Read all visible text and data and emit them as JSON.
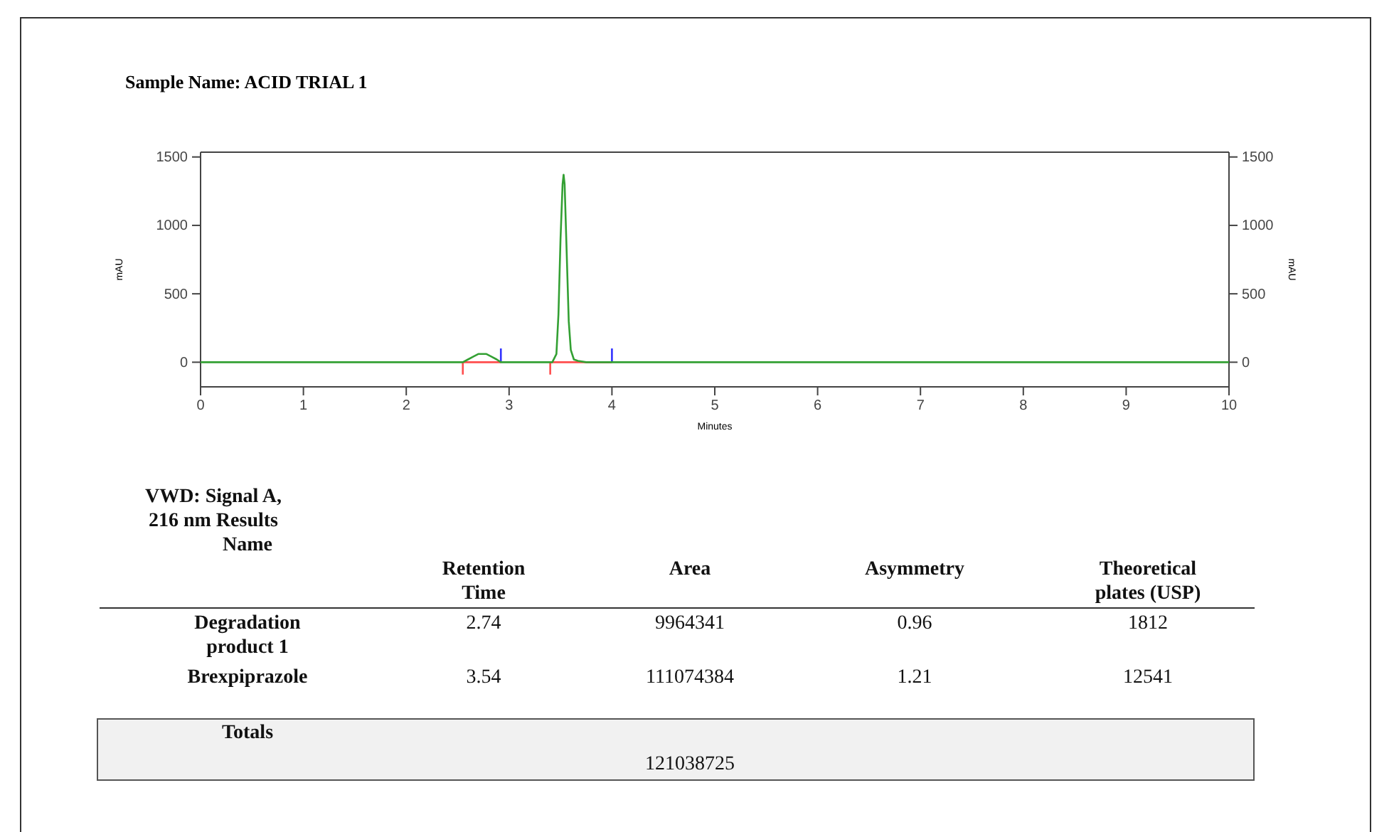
{
  "chart_data": {
    "type": "line",
    "title": "Sample Name: ACID TRIAL 1",
    "xlabel": "Minutes",
    "ylabel": "mAU",
    "y2label": "mAU",
    "xlim": [
      0,
      10
    ],
    "xticks": [
      0,
      1,
      2,
      3,
      4,
      5,
      6,
      7,
      8,
      9,
      10
    ],
    "ylim": [
      -180,
      1535
    ],
    "yticks": [
      0,
      500,
      1000,
      1500
    ],
    "y2lim": [
      -180,
      1535
    ],
    "y2ticks": [
      0,
      500,
      1000,
      1500
    ],
    "series": [
      {
        "color": "#ff4d4d",
        "x": [
          2.55,
          2.55,
          2.92,
          2.95,
          3.4,
          3.4,
          4.0
        ],
        "values": [
          -90,
          0,
          0,
          null,
          -90,
          0,
          0
        ]
      },
      {
        "color": "#3333ff",
        "x": [
          2.92,
          2.92,
          3.0,
          4.0,
          4.0
        ],
        "values": [
          0,
          100,
          null,
          0,
          100
        ]
      },
      {
        "color": "#33a033",
        "x": [
          0,
          2.55,
          2.6,
          2.65,
          2.7,
          2.74,
          2.78,
          2.83,
          2.88,
          2.92,
          3.42,
          3.46,
          3.48,
          3.5,
          3.52,
          3.53,
          3.54,
          3.56,
          3.58,
          3.6,
          3.63,
          3.67,
          3.75,
          3.8,
          10
        ],
        "values": [
          0,
          0,
          20,
          40,
          60,
          60,
          60,
          40,
          20,
          0,
          0,
          60,
          350,
          900,
          1300,
          1370,
          1300,
          800,
          300,
          90,
          20,
          10,
          0,
          0,
          0
        ]
      }
    ],
    "annotations": [
      "VWD: Signal A, 216 nm Results",
      "Name",
      "Retention Time",
      "Area",
      "Asymmetry",
      "Theoretical plates (USP)",
      "Degradation product 1",
      "2.74",
      "9964341",
      "0.96",
      "1812",
      "Brexpiprazole",
      "3.54",
      "111074384",
      "1.21",
      "12541",
      "Totals",
      "121038725"
    ]
  }
}
